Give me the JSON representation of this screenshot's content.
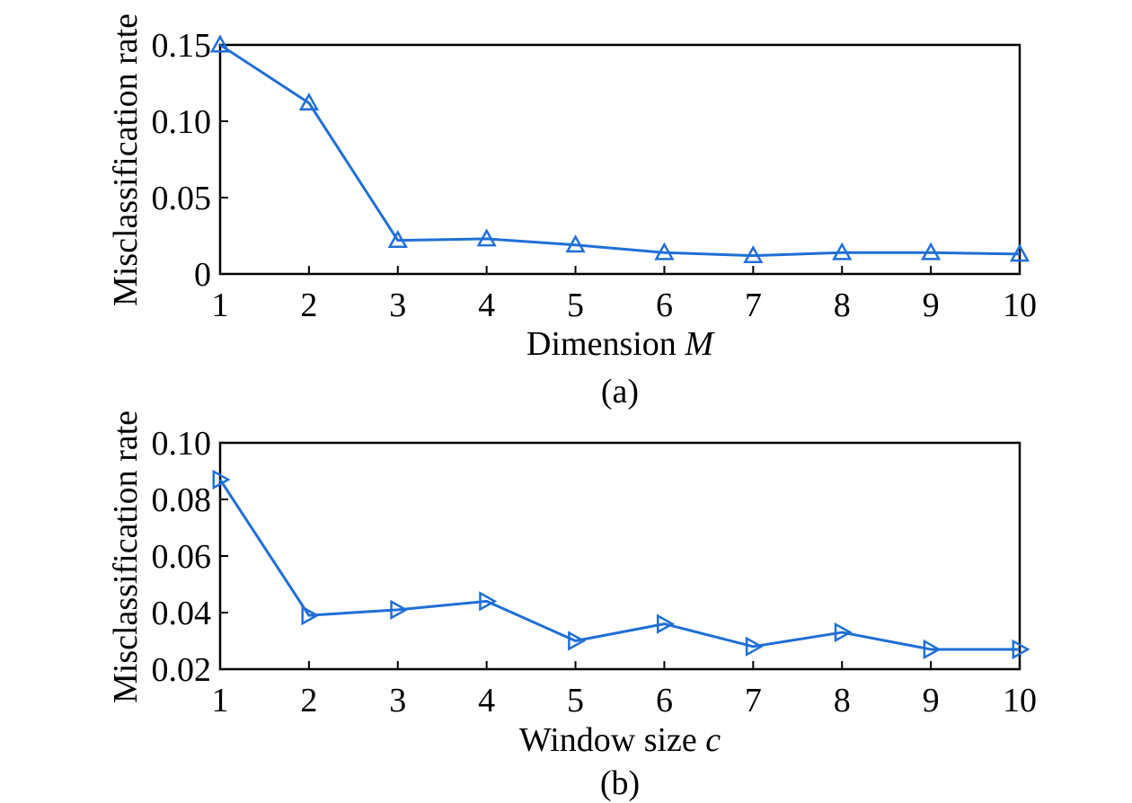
{
  "chart_data": [
    {
      "type": "line",
      "panel": "(a)",
      "xlabel": "Dimension",
      "xlabel_var": "M",
      "ylabel": "Misclassification rate",
      "x": [
        1,
        2,
        3,
        4,
        5,
        6,
        7,
        8,
        9,
        10
      ],
      "x_ticks": [
        "1",
        "2",
        "3",
        "4",
        "5",
        "6",
        "7",
        "8",
        "9",
        "10"
      ],
      "y_ticks": [
        {
          "value": 0,
          "label": "0"
        },
        {
          "value": 0.05,
          "label": "0.05"
        },
        {
          "value": 0.1,
          "label": "0.10"
        },
        {
          "value": 0.15,
          "label": "0.15"
        }
      ],
      "xlim": [
        1,
        10
      ],
      "ylim": [
        0,
        0.15
      ],
      "grid": false,
      "marker": "triangle-up",
      "color": "#1f6fd6",
      "series": [
        {
          "values": [
            0.15,
            0.112,
            0.022,
            0.023,
            0.019,
            0.014,
            0.012,
            0.014,
            0.014,
            0.013
          ]
        }
      ]
    },
    {
      "type": "line",
      "panel": "(b)",
      "xlabel": "Window size",
      "xlabel_var": "c",
      "ylabel": "Misclassification rate",
      "x": [
        1,
        2,
        3,
        4,
        5,
        6,
        7,
        8,
        9,
        10
      ],
      "x_ticks": [
        "1",
        "2",
        "3",
        "4",
        "5",
        "6",
        "7",
        "8",
        "9",
        "10"
      ],
      "y_ticks": [
        {
          "value": 0.02,
          "label": "0.02"
        },
        {
          "value": 0.04,
          "label": "0.04"
        },
        {
          "value": 0.06,
          "label": "0.06"
        },
        {
          "value": 0.08,
          "label": "0.08"
        },
        {
          "value": 0.1,
          "label": "0.10"
        }
      ],
      "xlim": [
        1,
        10
      ],
      "ylim": [
        0.02,
        0.1
      ],
      "grid": false,
      "marker": "triangle-right",
      "color": "#1f6fd6",
      "series": [
        {
          "values": [
            0.087,
            0.039,
            0.041,
            0.044,
            0.03,
            0.036,
            0.028,
            0.033,
            0.027,
            0.027
          ]
        }
      ]
    }
  ]
}
